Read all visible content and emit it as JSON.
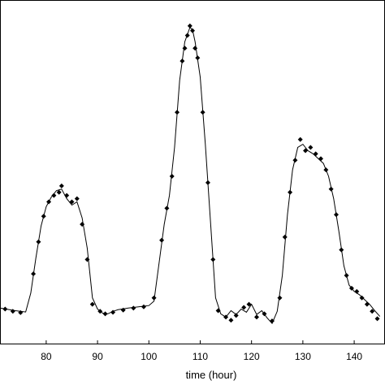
{
  "chart_data": {
    "type": "line",
    "title": "",
    "xlabel": "time (hour)",
    "ylabel": "",
    "xlim": [
      71,
      146
    ],
    "ylim": [
      0,
      1
    ],
    "x_ticks": [
      80,
      90,
      100,
      110,
      120,
      130,
      140
    ],
    "grid": false,
    "series": [
      {
        "style": "solid line",
        "color": "#000000",
        "x": [
          71,
          74,
          76,
          77,
          78,
          79,
          80,
          81,
          82,
          83,
          84,
          85,
          86,
          87,
          88,
          89,
          90,
          91,
          92,
          93,
          94,
          96,
          98,
          100,
          101,
          102,
          103,
          104,
          105,
          106,
          107,
          108,
          108.5,
          109,
          110,
          111,
          112,
          113,
          114,
          115,
          116,
          117,
          118,
          119,
          120,
          121,
          122,
          123,
          124,
          125,
          126,
          127,
          128,
          129,
          130,
          131,
          132,
          133,
          134,
          135,
          136,
          137,
          138,
          139,
          140,
          141,
          142,
          143,
          144,
          145
        ],
        "y": [
          0.088,
          0.08,
          0.076,
          0.135,
          0.245,
          0.345,
          0.405,
          0.435,
          0.455,
          0.46,
          0.43,
          0.41,
          0.42,
          0.37,
          0.275,
          0.12,
          0.085,
          0.072,
          0.07,
          0.078,
          0.083,
          0.088,
          0.092,
          0.096,
          0.11,
          0.23,
          0.35,
          0.44,
          0.59,
          0.8,
          0.92,
          0.965,
          0.958,
          0.92,
          0.81,
          0.6,
          0.36,
          0.12,
          0.07,
          0.06,
          0.08,
          0.068,
          0.085,
          0.075,
          0.1,
          0.068,
          0.08,
          0.058,
          0.04,
          0.078,
          0.19,
          0.38,
          0.52,
          0.59,
          0.6,
          0.58,
          0.57,
          0.555,
          0.54,
          0.5,
          0.43,
          0.33,
          0.22,
          0.16,
          0.14,
          0.13,
          0.115,
          0.1,
          0.08,
          0.062
        ]
      },
      {
        "style": "diamond markers",
        "color": "#000000",
        "x": [
          72,
          73.5,
          75,
          77.5,
          78.5,
          79.5,
          80.5,
          81.5,
          82.5,
          83,
          84,
          85,
          86,
          87,
          88,
          89,
          90.5,
          91.5,
          93,
          95,
          97,
          99,
          101,
          102.5,
          103.5,
          104.5,
          105.5,
          106.5,
          107,
          107.5,
          108,
          108.5,
          109,
          109.5,
          110.5,
          111.5,
          112.5,
          113.5,
          115,
          116,
          117,
          118.5,
          119.5,
          121,
          122.5,
          124,
          125.5,
          126.5,
          127.5,
          128.5,
          129.5,
          130.5,
          131.5,
          132.5,
          133.5,
          134.5,
          135.5,
          136.5,
          137.5,
          138.5,
          139.5,
          140.5,
          141.5,
          142.5,
          143.5,
          144.5
        ],
        "y": [
          0.085,
          0.078,
          0.074,
          0.195,
          0.295,
          0.375,
          0.42,
          0.44,
          0.45,
          0.47,
          0.44,
          0.42,
          0.43,
          0.35,
          0.24,
          0.1,
          0.078,
          0.07,
          0.075,
          0.082,
          0.088,
          0.092,
          0.12,
          0.3,
          0.4,
          0.5,
          0.7,
          0.86,
          0.9,
          0.94,
          0.97,
          0.955,
          0.9,
          0.87,
          0.7,
          0.48,
          0.24,
          0.08,
          0.06,
          0.05,
          0.065,
          0.09,
          0.1,
          0.06,
          0.07,
          0.048,
          0.12,
          0.31,
          0.45,
          0.55,
          0.615,
          0.58,
          0.59,
          0.57,
          0.555,
          0.52,
          0.46,
          0.38,
          0.27,
          0.19,
          0.15,
          0.14,
          0.12,
          0.1,
          0.078,
          0.055
        ]
      }
    ]
  }
}
